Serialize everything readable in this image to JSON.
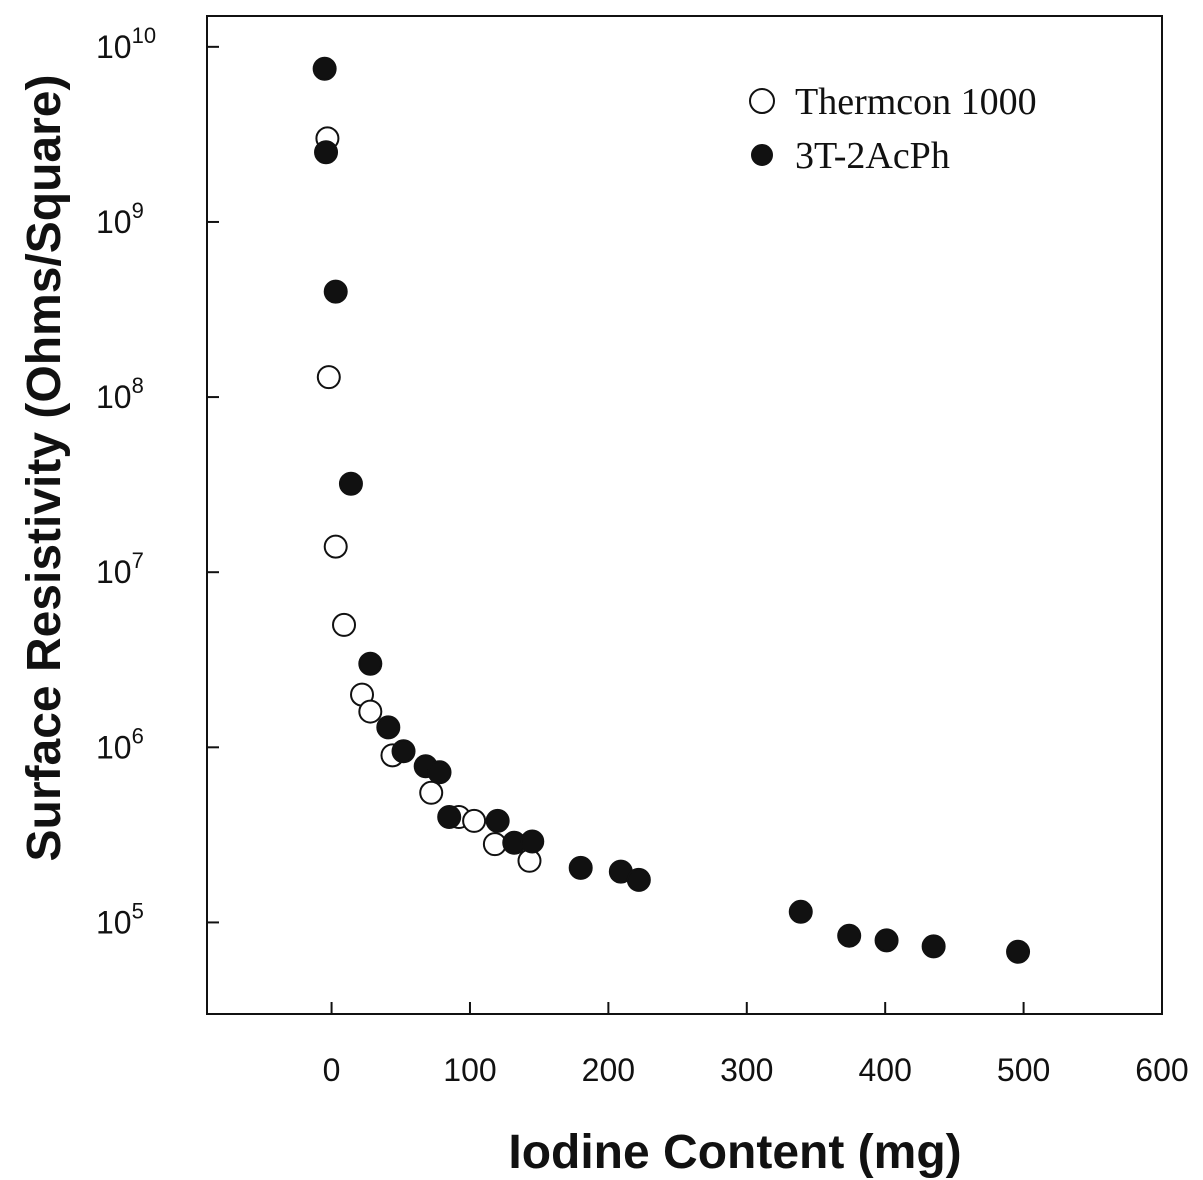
{
  "chart_data": {
    "type": "scatter",
    "title": "",
    "xlabel": "Iodine Content (mg)",
    "ylabel": "Surface Resistivity (Ohms/Square)",
    "xlim": [
      -90,
      600
    ],
    "ylim": [
      30000,
      15000000000
    ],
    "yscale": "log",
    "grid": false,
    "legend_position": "top-right",
    "x_ticks": [
      {
        "value": 0,
        "label": "0"
      },
      {
        "value": 100,
        "label": "100"
      },
      {
        "value": 200,
        "label": "200"
      },
      {
        "value": 300,
        "label": "300"
      },
      {
        "value": 400,
        "label": "400"
      },
      {
        "value": 500,
        "label": "500"
      },
      {
        "value": 600,
        "label": "600"
      }
    ],
    "y_ticks": [
      {
        "value": 100000,
        "base": "10",
        "exp": "5"
      },
      {
        "value": 1000000,
        "base": "10",
        "exp": "6"
      },
      {
        "value": 10000000,
        "base": "10",
        "exp": "7"
      },
      {
        "value": 100000000,
        "base": "10",
        "exp": "8"
      },
      {
        "value": 1000000000,
        "base": "10",
        "exp": "9"
      },
      {
        "value": 10000000000,
        "base": "10",
        "exp": "10"
      }
    ],
    "series": [
      {
        "name": "Thermcon 1000",
        "marker": "open-circle",
        "color": "#111111",
        "points": [
          {
            "x": -3,
            "y": 3000000000
          },
          {
            "x": -2,
            "y": 130000000
          },
          {
            "x": 3,
            "y": 14000000
          },
          {
            "x": 9,
            "y": 5000000
          },
          {
            "x": 22,
            "y": 2000000
          },
          {
            "x": 28,
            "y": 1600000
          },
          {
            "x": 44,
            "y": 900000
          },
          {
            "x": 72,
            "y": 550000
          },
          {
            "x": 92,
            "y": 400000
          },
          {
            "x": 103,
            "y": 380000
          },
          {
            "x": 118,
            "y": 280000
          },
          {
            "x": 143,
            "y": 225000
          }
        ]
      },
      {
        "name": "3T-2AcPh",
        "marker": "filled-circle",
        "color": "#111111",
        "points": [
          {
            "x": -5,
            "y": 7500000000
          },
          {
            "x": -4,
            "y": 2500000000
          },
          {
            "x": 3,
            "y": 400000000
          },
          {
            "x": 14,
            "y": 32000000
          },
          {
            "x": 28,
            "y": 3000000
          },
          {
            "x": 41,
            "y": 1300000
          },
          {
            "x": 52,
            "y": 950000
          },
          {
            "x": 68,
            "y": 780000
          },
          {
            "x": 78,
            "y": 720000
          },
          {
            "x": 85,
            "y": 400000
          },
          {
            "x": 120,
            "y": 380000
          },
          {
            "x": 132,
            "y": 285000
          },
          {
            "x": 145,
            "y": 290000
          },
          {
            "x": 180,
            "y": 205000
          },
          {
            "x": 209,
            "y": 195000
          },
          {
            "x": 222,
            "y": 175000
          },
          {
            "x": 339,
            "y": 115000
          },
          {
            "x": 374,
            "y": 84000
          },
          {
            "x": 401,
            "y": 79000
          },
          {
            "x": 435,
            "y": 73000
          },
          {
            "x": 496,
            "y": 68000
          }
        ]
      }
    ]
  }
}
